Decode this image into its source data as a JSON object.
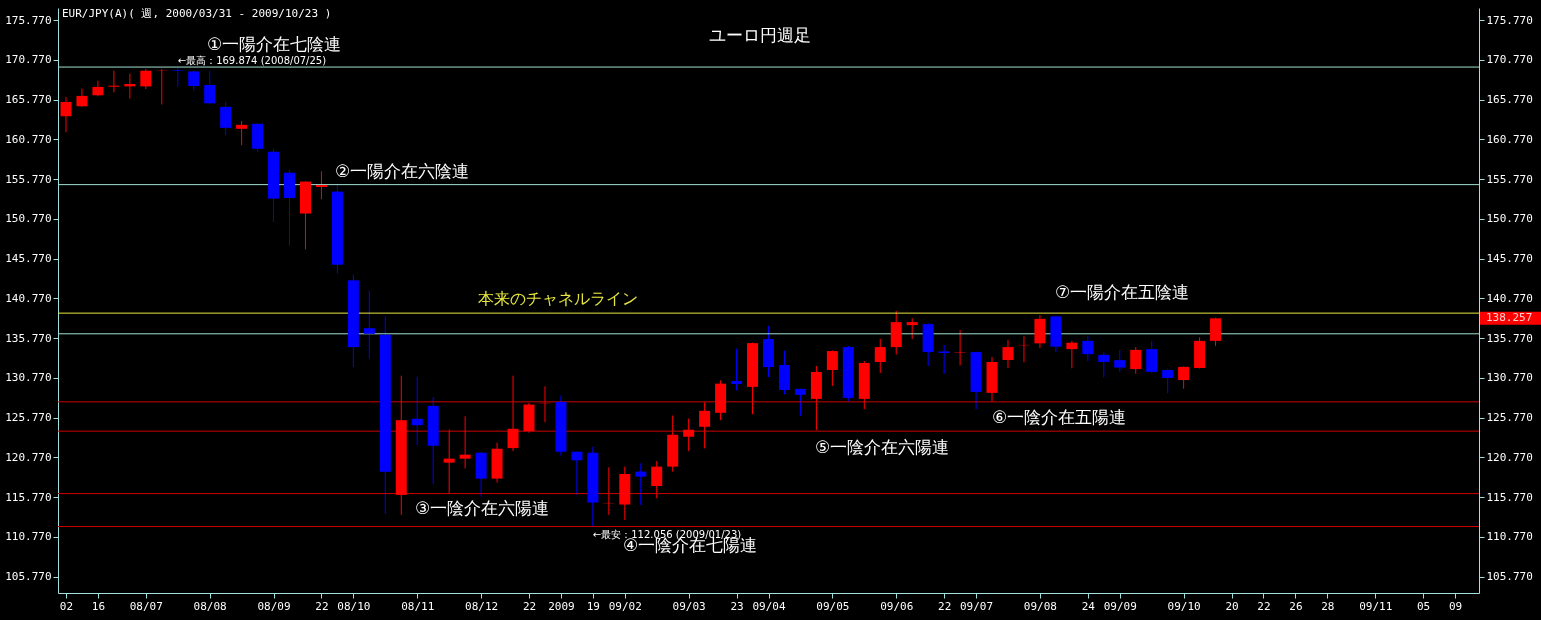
{
  "chart_data": {
    "type": "candlestick",
    "title": "ユーロ円週足",
    "subtitle": "EUR/JPY(A)( 週, 2000/03/31 - 2009/10/23 )",
    "categories": [
      "02",
      null,
      "16",
      null,
      null,
      "08/07",
      null,
      null,
      null,
      "08/08",
      null,
      null,
      null,
      "08/09",
      null,
      null,
      "22",
      null,
      "08/10",
      null,
      null,
      null,
      "08/11",
      null,
      null,
      null,
      "08/12",
      null,
      null,
      "22",
      null,
      "2009",
      null,
      "19",
      null,
      "09/02",
      null,
      null,
      null,
      "09/03",
      null,
      null,
      "23",
      null,
      "09/04",
      null,
      null,
      null,
      "09/05",
      null,
      null,
      null,
      "09/06",
      null,
      null,
      "22",
      null,
      "09/07",
      null,
      null,
      null,
      "09/08",
      null,
      null,
      "24",
      null,
      "09/09",
      null,
      null,
      null,
      "09/10",
      null,
      null,
      "20",
      null,
      "22",
      null,
      "26",
      null,
      "28",
      null,
      null,
      "09/11",
      null,
      null,
      "05",
      null,
      "09",
      null
    ],
    "ohlc": [
      [
        163.68,
        166.11,
        161.67,
        165.48
      ],
      [
        164.94,
        167.15,
        164.86,
        166.24
      ],
      [
        166.32,
        168.16,
        166.2,
        167.37
      ],
      [
        167.4,
        169.41,
        166.69,
        167.53
      ],
      [
        167.44,
        169.03,
        165.9,
        167.74
      ],
      [
        167.44,
        169.62,
        167.11,
        169.41
      ],
      [
        169.37,
        169.62,
        165.15,
        169.41
      ],
      [
        169.45,
        169.874,
        167.44,
        169.37
      ],
      [
        169.32,
        169.41,
        166.94,
        167.49
      ],
      [
        167.61,
        169.41,
        165.23,
        165.31
      ],
      [
        164.86,
        165.48,
        161.3,
        162.22
      ],
      [
        162.1,
        163.1,
        160.04,
        162.6
      ],
      [
        162.73,
        162.8,
        159.17,
        159.59
      ],
      [
        159.22,
        159.63,
        150.39,
        153.32
      ],
      [
        156.58,
        156.96,
        147.38,
        153.4
      ],
      [
        151.44,
        155.5,
        146.93,
        155.46
      ],
      [
        154.78,
        156.75,
        153.24,
        155.03
      ],
      [
        154.2,
        155.03,
        143.87,
        145.0
      ],
      [
        143.04,
        143.8,
        132.13,
        134.64
      ],
      [
        137.02,
        141.74,
        133.18,
        136.31
      ],
      [
        136.18,
        138.48,
        113.62,
        118.97
      ],
      [
        116.04,
        131.04,
        113.53,
        125.44
      ],
      [
        125.61,
        130.92,
        122.3,
        124.81
      ],
      [
        127.24,
        128.37,
        117.41,
        122.23
      ],
      [
        120.1,
        124.27,
        116.16,
        120.6
      ],
      [
        120.6,
        125.94,
        119.38,
        121.1
      ],
      [
        121.35,
        121.4,
        115.83,
        118.09
      ],
      [
        118.09,
        122.61,
        117.59,
        121.85
      ],
      [
        121.93,
        131.04,
        121.55,
        124.36
      ],
      [
        124.06,
        127.62,
        123.86,
        127.41
      ],
      [
        127.57,
        129.7,
        125.19,
        127.62
      ],
      [
        127.75,
        128.54,
        120.98,
        121.48
      ],
      [
        121.48,
        121.5,
        116.04,
        120.39
      ],
      [
        121.35,
        122.1,
        112.056,
        115.08
      ],
      [
        114.96,
        119.51,
        113.53,
        115.0
      ],
      [
        114.83,
        119.6,
        112.9,
        118.67
      ],
      [
        118.97,
        120.01,
        114.78,
        118.34
      ],
      [
        117.16,
        120.3,
        115.62,
        119.6
      ],
      [
        119.6,
        126.03,
        118.97,
        123.61
      ],
      [
        123.36,
        125.65,
        121.55,
        124.24
      ],
      [
        124.61,
        127.7,
        121.89,
        126.62
      ],
      [
        126.37,
        130.46,
        125.44,
        130.04
      ],
      [
        130.38,
        134.43,
        129.2,
        130.0
      ],
      [
        129.63,
        135.2,
        126.19,
        135.14
      ],
      [
        135.65,
        137.31,
        130.88,
        132.13
      ],
      [
        132.39,
        134.18,
        128.7,
        129.25
      ],
      [
        129.38,
        129.4,
        125.99,
        128.63
      ],
      [
        128.12,
        132.26,
        124.19,
        131.51
      ],
      [
        131.76,
        134.2,
        129.75,
        134.14
      ],
      [
        134.64,
        134.77,
        127.82,
        128.25
      ],
      [
        128.12,
        132.89,
        126.82,
        132.64
      ],
      [
        132.76,
        135.68,
        131.38,
        134.64
      ],
      [
        134.64,
        139.19,
        133.71,
        137.78
      ],
      [
        137.4,
        138.28,
        135.65,
        137.78
      ],
      [
        137.53,
        137.65,
        132.26,
        134.01
      ],
      [
        134.09,
        134.89,
        131.26,
        133.89
      ],
      [
        133.93,
        136.77,
        132.34,
        133.99
      ],
      [
        134.01,
        134.1,
        126.82,
        129.0
      ],
      [
        128.88,
        133.39,
        127.75,
        132.76
      ],
      [
        133.01,
        135.56,
        132.01,
        134.64
      ],
      [
        134.86,
        136.0,
        132.72,
        134.91
      ],
      [
        135.11,
        138.64,
        134.52,
        138.19
      ],
      [
        138.5,
        138.6,
        133.98,
        134.69
      ],
      [
        134.38,
        135.42,
        131.97,
        135.19
      ],
      [
        135.42,
        136.08,
        132.86,
        133.75
      ],
      [
        133.66,
        133.98,
        130.84,
        132.77
      ],
      [
        133.0,
        134.25,
        131.52,
        132.06
      ],
      [
        131.87,
        134.65,
        131.29,
        134.29
      ],
      [
        134.38,
        135.42,
        131.38,
        131.52
      ],
      [
        131.75,
        131.92,
        128.84,
        130.76
      ],
      [
        130.49,
        132.2,
        129.41,
        132.15
      ],
      [
        132.01,
        135.86,
        131.95,
        135.42
      ],
      [
        135.42,
        138.33,
        134.79,
        138.257
      ],
      null,
      null,
      null,
      null,
      null,
      null,
      null,
      null,
      null,
      null,
      null,
      null,
      null,
      null,
      null,
      null
    ],
    "colors": [
      "#ff0000",
      "#ff0000",
      "#ff0000",
      "#ff0000",
      "#ff0000",
      "#ff0000",
      "#ff0000",
      "#0000ff",
      "#0000ff",
      "#0000ff",
      "#0000ff",
      "#ff0000",
      "#0000ff",
      "#0000ff",
      "#0000ff",
      "#ff0000",
      "#ff0000",
      "#0000ff",
      "#0000ff",
      "#0000ff",
      "#0000ff",
      "#ff0000",
      "#0000ff",
      "#0000ff",
      "#ff0000",
      "#ff0000",
      "#0000ff",
      "#ff0000",
      "#ff0000",
      "#ff0000",
      "#ff0000",
      "#0000ff",
      "#0000ff",
      "#0000ff",
      "#ff0000",
      "#ff0000",
      "#0000ff",
      "#ff0000",
      "#ff0000",
      "#ff0000",
      "#ff0000",
      "#ff0000",
      "#0000ff",
      "#ff0000",
      "#0000ff",
      "#0000ff",
      "#0000ff",
      "#ff0000",
      "#ff0000",
      "#0000ff",
      "#ff0000",
      "#ff0000",
      "#ff0000",
      "#ff0000",
      "#0000ff",
      "#0000ff",
      "#ff0000",
      "#0000ff",
      "#ff0000",
      "#ff0000",
      "#ff0000",
      "#ff0000",
      "#0000ff",
      "#ff0000",
      "#0000ff",
      "#0000ff",
      "#0000ff",
      "#ff0000",
      "#0000ff",
      "#0000ff",
      "#ff0000",
      "#ff0000",
      "#ff0000",
      null,
      null,
      null,
      null,
      null,
      null,
      null,
      null,
      null,
      null,
      null,
      null,
      null,
      null,
      null,
      null
    ],
    "ylim": [
      103.7,
      177.3
    ],
    "yticks": [
      {
        "value": 105.77,
        "label": "105.770"
      },
      {
        "value": 110.77,
        "label": "110.770"
      },
      {
        "value": 115.77,
        "label": "115.770"
      },
      {
        "value": 120.77,
        "label": "120.770"
      },
      {
        "value": 125.77,
        "label": "125.770"
      },
      {
        "value": 130.77,
        "label": "130.770"
      },
      {
        "value": 135.77,
        "label": "135.770"
      },
      {
        "value": 140.77,
        "label": "140.770"
      },
      {
        "value": 145.77,
        "label": "145.770"
      },
      {
        "value": 150.77,
        "label": "150.770"
      },
      {
        "value": 155.77,
        "label": "155.770"
      },
      {
        "value": 160.77,
        "label": "160.770"
      },
      {
        "value": 165.77,
        "label": "165.770"
      },
      {
        "value": 170.77,
        "label": "170.770"
      },
      {
        "value": 175.77,
        "label": "175.770"
      }
    ],
    "y2lim": [
      103.7,
      177.3
    ],
    "y2ticks": [
      {
        "value": 105.77,
        "label": "105.770"
      },
      {
        "value": 110.77,
        "label": "110.770"
      },
      {
        "value": 115.77,
        "label": "115.770"
      },
      {
        "value": 120.77,
        "label": "120.770"
      },
      {
        "value": 125.77,
        "label": "125.770"
      },
      {
        "value": 130.77,
        "label": "130.770"
      },
      {
        "value": 135.77,
        "label": "135.770"
      },
      {
        "value": 140.77,
        "label": "140.770"
      },
      {
        "value": 145.77,
        "label": "145.770"
      },
      {
        "value": 150.77,
        "label": "150.770"
      },
      {
        "value": 155.77,
        "label": "155.770"
      },
      {
        "value": 160.77,
        "label": "160.770"
      },
      {
        "value": 165.77,
        "label": "165.770"
      },
      {
        "value": 170.77,
        "label": "170.770"
      },
      {
        "value": 175.77,
        "label": "175.770"
      }
    ],
    "ref_lines": [
      {
        "axis": "y",
        "value": 169.87,
        "color": "#a0e0d0"
      },
      {
        "axis": "y",
        "value": 155.08,
        "color": "#a0e0d0"
      },
      {
        "axis": "y",
        "value": 138.91,
        "color": "#e8e840",
        "label": "本来のチャネルライン"
      },
      {
        "axis": "y",
        "value": 136.31,
        "color": "#a0e0d0"
      },
      {
        "axis": "y",
        "value": 127.75,
        "color": "#cc0000"
      },
      {
        "axis": "y",
        "value": 124.06,
        "color": "#cc0000"
      },
      {
        "axis": "y",
        "value": 116.21,
        "color": "#cc0000"
      },
      {
        "axis": "y",
        "value": 112.06,
        "color": "#cc0000"
      }
    ],
    "annotations": [
      "①一陽介在七陰連",
      {
        "text": "←最高：169.874 (2008/07/25)",
        "y": 169.874
      },
      "②一陽介在六陰連",
      "③一陰介在六陽連",
      {
        "text": "←最安：112.056 (2009/01/23)",
        "y": 112.056
      },
      "④一陰介在七陽連",
      "⑤一陰介在六陽連",
      "⑥一陰介在五陽連",
      "⑦一陽介在五陰連",
      "138.257"
    ]
  }
}
